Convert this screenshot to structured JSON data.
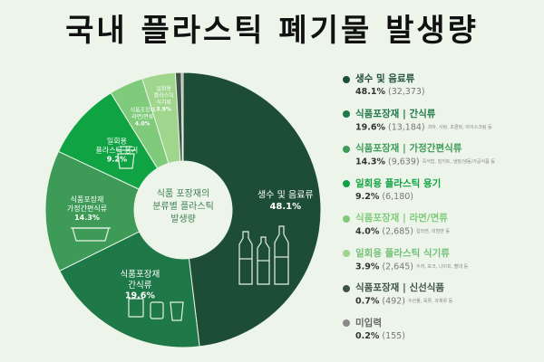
{
  "title": "국내 플라스틱 폐기물 발생량",
  "center_label": [
    "식품 포장재의",
    "분류별 플라스틱",
    "발생량"
  ],
  "chart_data": {
    "type": "pie",
    "title": "국내 플라스틱 폐기물 발생량",
    "center_label": "식품 포장재의 분류별 플라스틱 발생량",
    "categories": [
      "생수 및 음료류",
      "식품포장재 | 간식류",
      "식품포장재 | 가정간편식류",
      "일회용 플라스틱 용기",
      "식품포장재 | 라면/면류",
      "일회용 플라스틱 식기류",
      "식품포장재 | 신선식품",
      "미입력"
    ],
    "values": [
      48.1,
      19.6,
      14.3,
      9.2,
      4.0,
      3.9,
      0.7,
      0.2
    ],
    "counts": [
      "32,373",
      "13,184",
      "9,639",
      "6,180",
      "2,685",
      "2,645",
      "492",
      "155"
    ],
    "colors": [
      "#1e4d37",
      "#1f7848",
      "#3d9b57",
      "#10a343",
      "#7fcb7b",
      "#9fd58d",
      "#3f5347",
      "#8a8a8a"
    ],
    "legend_position": "right"
  },
  "slice_labels": [
    {
      "lines": [
        "생수 및 음료류",
        "48.1%"
      ]
    },
    {
      "lines": [
        "식품포장재",
        "간식류",
        "19.6%"
      ]
    },
    {
      "lines": [
        "식품포장재",
        "가정간편식류",
        "14.3%"
      ]
    },
    {
      "lines": [
        "일회용",
        "플라스틱 용기",
        "9.2%"
      ]
    },
    {
      "lines": [
        "식품포장재",
        "라면/면류",
        "4.0%"
      ]
    },
    {
      "lines": [
        "일회용",
        "플라스틱",
        "식기류",
        "3.9%"
      ]
    }
  ],
  "legend": [
    {
      "label": "생수 및 음료류",
      "pct": "48.1%",
      "count": "(32,373)",
      "examples": "",
      "color": "#1e4d37"
    },
    {
      "label": "식품포장재 | 간식류",
      "pct": "19.6%",
      "count": "(13,184)",
      "examples": "과자, 사탕, 초콜릿, 아이스크림 등",
      "color": "#1f7848"
    },
    {
      "label": "식품포장재 | 가정간편식류",
      "pct": "14.3%",
      "count": "(9,639)",
      "examples": "즉석밥, 밀키트, 냉장/냉동/가공식품 등",
      "color": "#3d9b57"
    },
    {
      "label": "일회용 플라스틱 용기",
      "pct": "9.2%",
      "count": "(6,180)",
      "examples": "",
      "color": "#10a343"
    },
    {
      "label": "식품포장재 | 라면/면류",
      "pct": "4.0%",
      "count": "(2,685)",
      "examples": "컵라면, 비빔면 등",
      "color": "#7fcb7b"
    },
    {
      "label": "일회용 플라스틱 식기류",
      "pct": "3.9%",
      "count": "(2,645)",
      "examples": "수저, 포크, 나이프, 빨대 등",
      "color": "#9fd58d"
    },
    {
      "label": "식품포장재 | 신선식품",
      "pct": "0.7%",
      "count": "(492)",
      "examples": "수산물, 육류, 과채류 등",
      "color": "#3f5347"
    },
    {
      "label": "미입력",
      "pct": "0.2%",
      "count": "(155)",
      "examples": "",
      "color": "#8a8a8a"
    }
  ]
}
